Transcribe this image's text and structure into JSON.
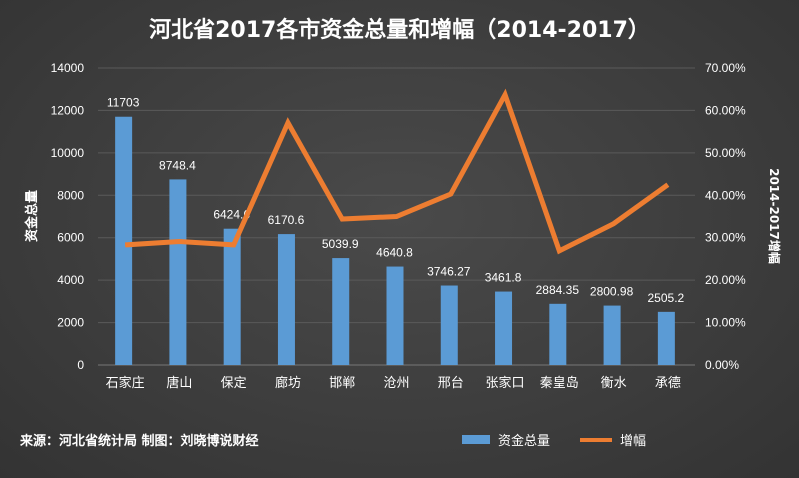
{
  "chart_data": {
    "type": "bar+line",
    "title": "河北省2017各市资金总量和增幅（2014-2017）",
    "categories": [
      "石家庄",
      "唐山",
      "保定",
      "廊坊",
      "邯郸",
      "沧州",
      "邢台",
      "张家口",
      "秦皇岛",
      "衡水",
      "承德"
    ],
    "series": [
      {
        "name": "资金总量",
        "type": "bar",
        "axis": "left",
        "color": "#5b9bd5",
        "values": [
          11703,
          8748.4,
          6424.6,
          6170.6,
          5039.9,
          4640.8,
          3746.27,
          3461.8,
          2884.35,
          2800.98,
          2505.2
        ],
        "labels": [
          "11703",
          "8748.4",
          "6424.6",
          "6170.6",
          "5039.9",
          "4640.8",
          "3746.27",
          "3461.8",
          "2884.35",
          "2800.98",
          "2505.2"
        ]
      },
      {
        "name": "增幅",
        "type": "line",
        "axis": "right",
        "color": "#ed7d31",
        "values": [
          28.3,
          29.1,
          28.3,
          57.1,
          34.4,
          35.0,
          40.3,
          63.7,
          26.9,
          33.3,
          42.5
        ]
      }
    ],
    "ylabel": "资金总量",
    "ylabel_right": "2014-2017增幅",
    "ylim": [
      0,
      14000
    ],
    "yticks": [
      "0",
      "2000",
      "4000",
      "6000",
      "8000",
      "10000",
      "12000",
      "14000"
    ],
    "ylim_right": [
      0,
      70
    ],
    "yticks_right": [
      "0.00%",
      "10.00%",
      "20.00%",
      "30.00%",
      "40.00%",
      "50.00%",
      "60.00%",
      "70.00%"
    ],
    "grid": true,
    "legend": "bottom-right"
  },
  "source": "来源：河北省统计局 制图：刘晓博说财经"
}
